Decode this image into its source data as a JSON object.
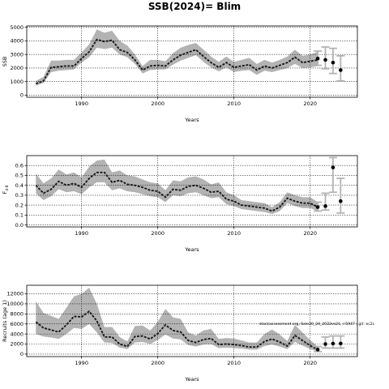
{
  "title": "SSB(2024)= Blim",
  "annotation": "stockassessment.org, Sole20_24_2022vs21, r:5947 , git: ec2c",
  "colors": {
    "band": "#b3b3b3",
    "line": "#1a1a1a",
    "forecast": "#b3b3b3",
    "point": "#000000"
  },
  "chart_data": [
    {
      "type": "line",
      "name": "ssb",
      "xlabel": "Years",
      "ylabel": "SSB",
      "xlim": [
        1982.8,
        2026.2
      ],
      "ylim": [
        -150,
        5100
      ],
      "xticks": [
        1990,
        2000,
        2010,
        2020
      ],
      "yticks": [
        0,
        1000,
        2000,
        3000,
        4000,
        5000
      ],
      "ytick_labels": [
        "0",
        "1000",
        "2000",
        "3000",
        "4000",
        "5000"
      ],
      "x": [
        1984,
        1985,
        1986,
        1987,
        1988,
        1989,
        1990,
        1991,
        1992,
        1993,
        1994,
        1995,
        1996,
        1997,
        1998,
        1999,
        2000,
        2001,
        2002,
        2003,
        2004,
        2005,
        2006,
        2007,
        2008,
        2009,
        2010,
        2011,
        2012,
        2013,
        2014,
        2015,
        2016,
        2017,
        2018,
        2019,
        2020,
        2021
      ],
      "estimate": [
        850,
        1050,
        2050,
        2100,
        2150,
        2150,
        2700,
        3200,
        4100,
        3950,
        4050,
        3350,
        3150,
        2600,
        1850,
        2150,
        2200,
        2150,
        2600,
        2950,
        3150,
        3350,
        2850,
        2400,
        2050,
        2400,
        2050,
        2150,
        2250,
        1850,
        2150,
        2000,
        2200,
        2400,
        2800,
        2400,
        2500,
        2600
      ],
      "lower": [
        700,
        900,
        1700,
        1800,
        1850,
        1900,
        2400,
        2800,
        3500,
        3400,
        3500,
        3000,
        2800,
        2300,
        1600,
        1850,
        1900,
        1900,
        2250,
        2550,
        2750,
        2950,
        2450,
        2050,
        1750,
        2050,
        1700,
        1800,
        1850,
        1500,
        1800,
        1700,
        1850,
        2000,
        2300,
        2000,
        2050,
        2150
      ],
      "upper": [
        1050,
        1350,
        2550,
        2550,
        2600,
        2600,
        3150,
        3750,
        4850,
        4600,
        4750,
        4000,
        3650,
        3000,
        2150,
        2600,
        2600,
        2500,
        3100,
        3500,
        3700,
        3850,
        3350,
        2850,
        2450,
        2850,
        2450,
        2600,
        2750,
        2300,
        2600,
        2400,
        2600,
        2850,
        3350,
        2900,
        3000,
        3200
      ],
      "forecast": {
        "x": [
          2021,
          2022,
          2023,
          2024
        ],
        "median": [
          2700,
          2600,
          2400,
          1850
        ],
        "lower": [
          2200,
          1950,
          1600,
          1050
        ],
        "upper": [
          3250,
          3550,
          3450,
          2900
        ]
      }
    },
    {
      "type": "line",
      "name": "fbar",
      "xlabel": "Years",
      "ylabel": "F",
      "ylabel_sub": "4-8",
      "xlim": [
        1982.8,
        2026.2
      ],
      "ylim": [
        -0.02,
        0.7
      ],
      "xticks": [
        1990,
        2000,
        2010,
        2020
      ],
      "yticks": [
        0.0,
        0.1,
        0.2,
        0.3,
        0.4,
        0.5,
        0.6
      ],
      "ytick_labels": [
        "0.0",
        "0.1",
        "0.2",
        "0.3",
        "0.4",
        "0.5",
        "0.6"
      ],
      "x": [
        1984,
        1985,
        1986,
        1987,
        1988,
        1989,
        1990,
        1991,
        1992,
        1993,
        1994,
        1995,
        1996,
        1997,
        1998,
        1999,
        2000,
        2001,
        2002,
        2003,
        2004,
        2005,
        2006,
        2007,
        2008,
        2009,
        2010,
        2011,
        2012,
        2013,
        2014,
        2015,
        2016,
        2017,
        2018,
        2019,
        2020,
        2021
      ],
      "estimate": [
        0.4,
        0.32,
        0.36,
        0.44,
        0.4,
        0.42,
        0.38,
        0.47,
        0.53,
        0.53,
        0.43,
        0.45,
        0.41,
        0.4,
        0.38,
        0.35,
        0.34,
        0.28,
        0.36,
        0.35,
        0.39,
        0.4,
        0.37,
        0.33,
        0.34,
        0.26,
        0.24,
        0.2,
        0.19,
        0.18,
        0.17,
        0.14,
        0.18,
        0.27,
        0.24,
        0.22,
        0.22,
        0.18
      ],
      "lower": [
        0.32,
        0.25,
        0.29,
        0.36,
        0.33,
        0.34,
        0.31,
        0.38,
        0.43,
        0.43,
        0.35,
        0.37,
        0.34,
        0.33,
        0.31,
        0.29,
        0.28,
        0.23,
        0.3,
        0.29,
        0.32,
        0.33,
        0.3,
        0.27,
        0.28,
        0.21,
        0.19,
        0.16,
        0.15,
        0.14,
        0.13,
        0.11,
        0.14,
        0.22,
        0.19,
        0.17,
        0.17,
        0.14
      ],
      "upper": [
        0.52,
        0.42,
        0.47,
        0.56,
        0.51,
        0.53,
        0.48,
        0.59,
        0.65,
        0.66,
        0.53,
        0.55,
        0.5,
        0.49,
        0.46,
        0.43,
        0.42,
        0.35,
        0.45,
        0.44,
        0.48,
        0.49,
        0.46,
        0.41,
        0.43,
        0.33,
        0.3,
        0.25,
        0.24,
        0.23,
        0.22,
        0.18,
        0.23,
        0.33,
        0.3,
        0.28,
        0.28,
        0.23
      ],
      "forecast": {
        "x": [
          2021,
          2022,
          2023,
          2024
        ],
        "median": [
          0.18,
          0.19,
          0.58,
          0.24
        ],
        "lower": [
          0.14,
          0.15,
          0.33,
          0.12
        ],
        "upper": [
          0.23,
          0.32,
          0.68,
          0.47
        ]
      }
    },
    {
      "type": "line",
      "name": "recruits",
      "xlabel": "Years",
      "ylabel": "Recruits (age 1)",
      "xlim": [
        1982.8,
        2026.2
      ],
      "ylim": [
        -500,
        13700
      ],
      "xticks": [
        1990,
        2000,
        2010,
        2020
      ],
      "yticks": [
        0,
        2000,
        4000,
        6000,
        8000,
        10000,
        12000
      ],
      "ytick_labels": [
        "0",
        "2000",
        "4000",
        "6000",
        "8000",
        "10000",
        "12000"
      ],
      "x": [
        1984,
        1985,
        1986,
        1987,
        1988,
        1989,
        1990,
        1991,
        1992,
        1993,
        1994,
        1995,
        1996,
        1997,
        1998,
        1999,
        2000,
        2001,
        2002,
        2003,
        2004,
        2005,
        2006,
        2007,
        2008,
        2009,
        2010,
        2011,
        2012,
        2013,
        2014,
        2015,
        2016,
        2017,
        2018,
        2019,
        2020,
        2021
      ],
      "estimate": [
        6400,
        5200,
        4800,
        4400,
        5800,
        7500,
        7400,
        8500,
        6600,
        3400,
        3400,
        2000,
        1500,
        3500,
        3600,
        3000,
        4100,
        5800,
        4700,
        4400,
        2700,
        2300,
        2900,
        3100,
        1900,
        2000,
        1900,
        1700,
        1400,
        1400,
        2500,
        3000,
        2400,
        1600,
        3700,
        2700,
        1700,
        900
      ],
      "lower": [
        4000,
        3500,
        3300,
        3000,
        4000,
        5200,
        5000,
        6000,
        4300,
        2300,
        2200,
        1300,
        1000,
        2300,
        2400,
        2000,
        2800,
        3900,
        3100,
        2900,
        1800,
        1500,
        1900,
        2000,
        1200,
        1300,
        1200,
        1100,
        900,
        900,
        1600,
        1900,
        1500,
        1000,
        2400,
        1700,
        1000,
        500
      ],
      "upper": [
        10500,
        8200,
        7600,
        7000,
        9200,
        11500,
        12000,
        13200,
        10000,
        5400,
        5400,
        3400,
        2500,
        5600,
        5700,
        4700,
        6400,
        9000,
        7300,
        7000,
        4300,
        3700,
        4700,
        5000,
        3000,
        3200,
        3100,
        2700,
        2300,
        2300,
        4000,
        4900,
        3900,
        2600,
        5800,
        4300,
        2800,
        1500
      ],
      "forecast": {
        "x": [
          2021,
          2022,
          2023,
          2024
        ],
        "median": [
          900,
          2000,
          2100,
          2100
        ],
        "lower": [
          500,
          1200,
          1200,
          1200
        ],
        "upper": [
          1500,
          3400,
          3600,
          3600
        ]
      }
    }
  ]
}
